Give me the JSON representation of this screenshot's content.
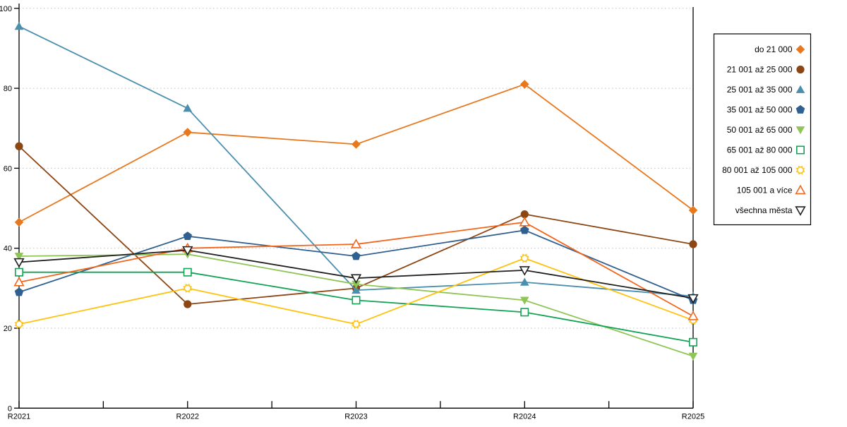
{
  "chart_data": {
    "type": "line",
    "title": "",
    "xlabel": "",
    "ylabel": "",
    "categories": [
      "R2021",
      "R2022",
      "R2023",
      "R2024",
      "R2025"
    ],
    "ylim": [
      0,
      100
    ],
    "yticks": [
      0,
      20,
      40,
      60,
      80,
      100
    ],
    "grid": "horizontal dotted gridlines at every 20 units",
    "legend_position": "right, boxed, text right-aligned with marker at right",
    "series": [
      {
        "name": "do 21 000",
        "marker": "diamond-filled",
        "color": "#E8781E",
        "values": [
          46.5,
          69,
          66,
          81,
          49.5
        ]
      },
      {
        "name": "21 001 až 25 000",
        "marker": "circle-filled",
        "color": "#8C4613",
        "values": [
          65.5,
          26,
          30,
          48.5,
          41
        ]
      },
      {
        "name": "25 001 až 35 000",
        "marker": "triangle-up-filled",
        "color": "#4A8FAD",
        "values": [
          95.5,
          75,
          29.5,
          31.5,
          28
        ]
      },
      {
        "name": "35 001 až 50 000",
        "marker": "pentagon-filled",
        "color": "#2F608F",
        "values": [
          29,
          43,
          38,
          44.5,
          27
        ]
      },
      {
        "name": "50 001 až 65 000",
        "marker": "triangle-down-filled",
        "color": "#8FC556",
        "values": [
          38,
          38.5,
          31,
          27,
          13
        ]
      },
      {
        "name": "65 001 až 80 000",
        "marker": "square-open",
        "color": "#12A355",
        "values": [
          34,
          34,
          27,
          24,
          16.5
        ]
      },
      {
        "name": "80 001 až 105 000",
        "marker": "circle-open-sun",
        "color": "#FFC20E",
        "values": [
          21,
          30,
          21,
          37.5,
          22
        ]
      },
      {
        "name": "105 001 a více",
        "marker": "triangle-up-open",
        "color": "#F2661C",
        "values": [
          31.5,
          40,
          41,
          46.5,
          23
        ]
      },
      {
        "name": "všechna města",
        "marker": "triangle-down-open",
        "color": "#202020",
        "values": [
          36.5,
          39.5,
          32.5,
          34.5,
          27.5
        ]
      }
    ],
    "colors": {
      "axis": "#000000",
      "gridline": "#c0c0c0",
      "legend_border": "#000000",
      "background": "#ffffff"
    }
  }
}
